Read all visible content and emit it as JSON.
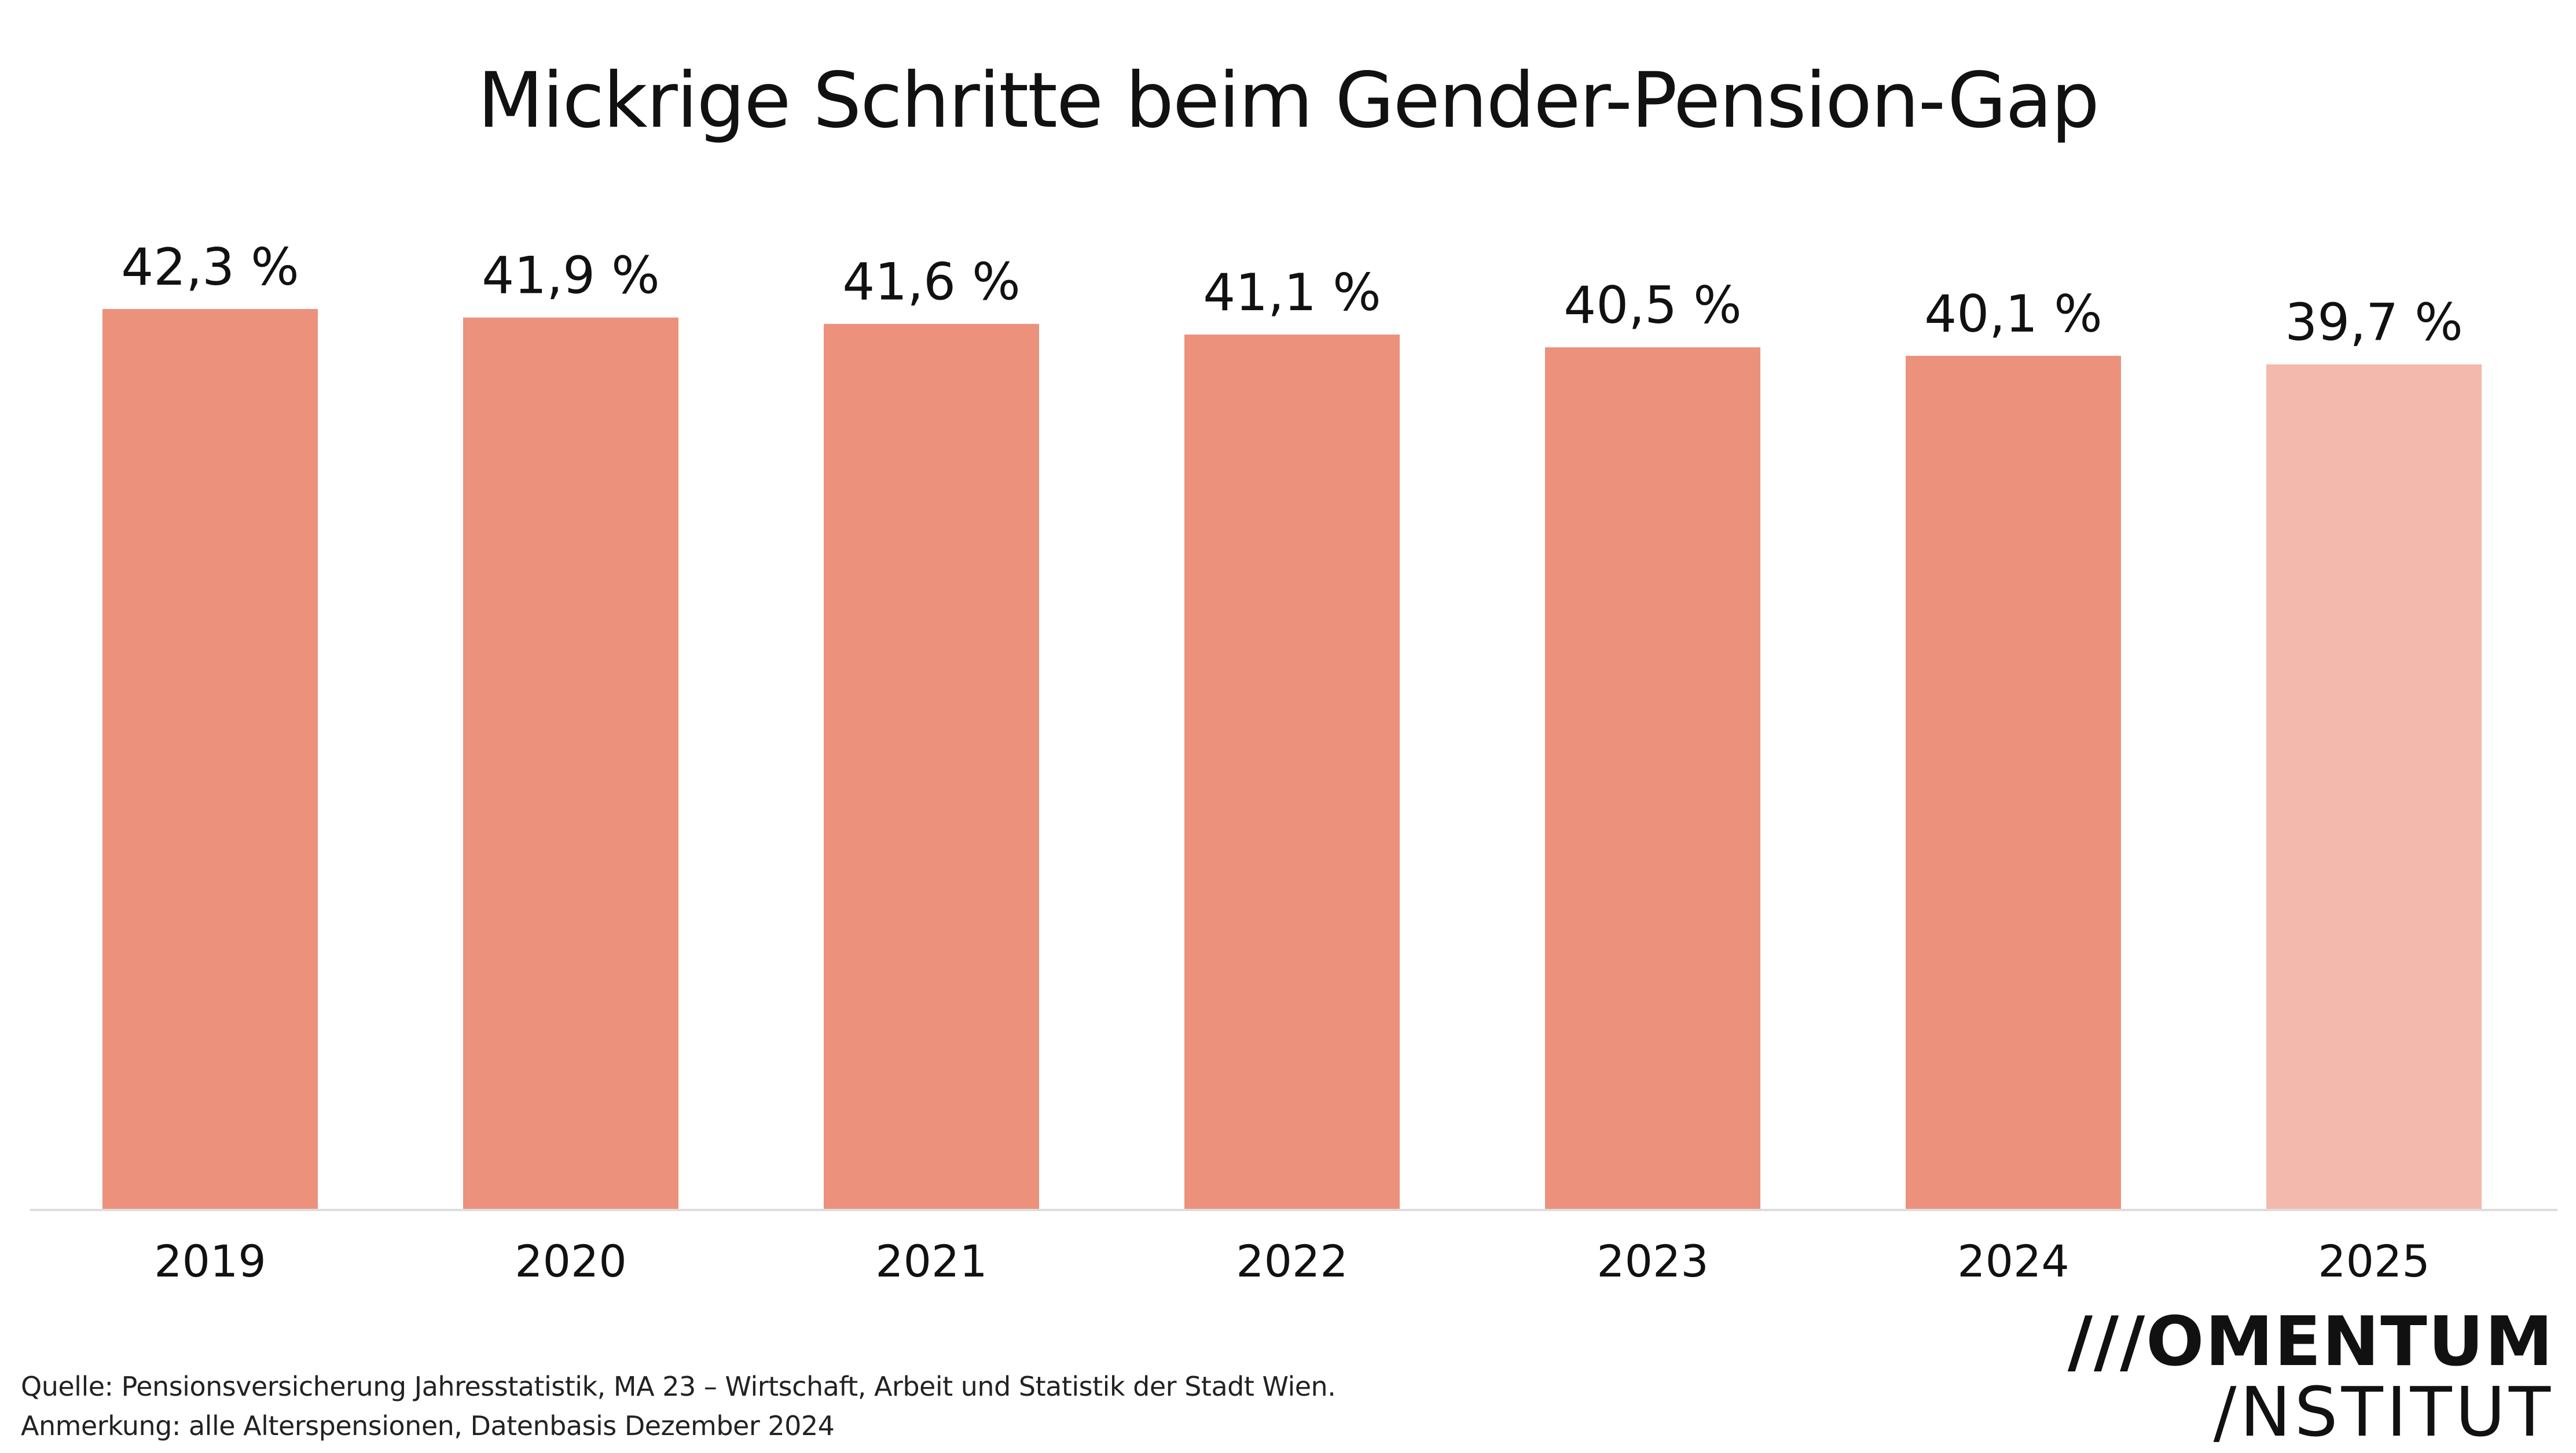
{
  "colors": {
    "bar": "#EC917C",
    "bar_highlight": "#F4B9AD",
    "axis": "#DDDDDD"
  },
  "logo": {
    "line1": "///OMENTUM",
    "line2": "/NSTITUT"
  },
  "footer": {
    "source": "Quelle: Pensionsversicherung Jahresstatistik, MA 23 – Wirtschaft, Arbeit und Statistik der Stadt Wien.",
    "note": "Anmerkung: alle Alterspensionen, Datenbasis Dezember 2024"
  },
  "chart_data": {
    "type": "bar",
    "title": "Mickrige Schritte beim Gender-Pension-Gap",
    "xlabel": "",
    "ylabel": "",
    "categories": [
      "2019",
      "2020",
      "2021",
      "2022",
      "2023",
      "2024",
      "2025"
    ],
    "values": [
      42.3,
      41.9,
      41.6,
      41.1,
      40.5,
      40.1,
      39.7
    ],
    "value_labels": [
      "42,3 %",
      "41,9 %",
      "41,6 %",
      "41,1 %",
      "40,5 %",
      "40,1 %",
      "39,7 %"
    ],
    "highlighted_categories": [
      "2025"
    ],
    "ylim": [
      0,
      42.3
    ],
    "grid": false,
    "legend": "none"
  }
}
